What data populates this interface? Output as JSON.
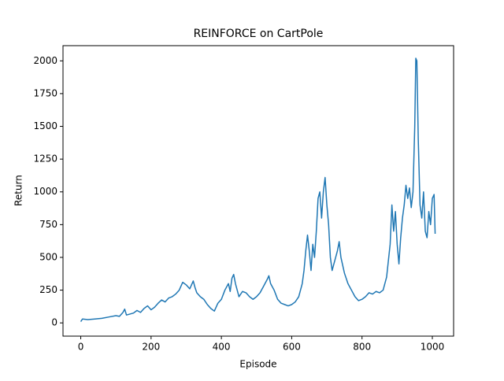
{
  "chart_data": {
    "type": "line",
    "title": "REINFORCE on CartPole",
    "x_label": "Episode",
    "y_label": "Return",
    "series": [
      {
        "name": "Return",
        "color": "#1f77b4",
        "x": [
          0,
          5,
          20,
          40,
          60,
          80,
          100,
          110,
          120,
          125,
          130,
          150,
          160,
          170,
          180,
          190,
          200,
          210,
          220,
          230,
          240,
          250,
          260,
          270,
          280,
          290,
          300,
          310,
          320,
          325,
          330,
          340,
          350,
          360,
          370,
          380,
          390,
          400,
          410,
          420,
          425,
          430,
          435,
          440,
          445,
          450,
          460,
          470,
          480,
          490,
          500,
          510,
          520,
          530,
          535,
          540,
          550,
          560,
          570,
          580,
          590,
          600,
          610,
          620,
          630,
          635,
          640,
          645,
          650,
          655,
          660,
          665,
          670,
          675,
          680,
          685,
          690,
          695,
          700,
          705,
          710,
          715,
          720,
          730,
          735,
          740,
          750,
          760,
          770,
          780,
          790,
          800,
          810,
          820,
          830,
          840,
          850,
          860,
          870,
          880,
          885,
          890,
          895,
          900,
          905,
          910,
          915,
          920,
          925,
          930,
          935,
          940,
          945,
          950,
          953,
          956,
          960,
          965,
          970,
          975,
          980,
          985,
          990,
          995,
          1000,
          1005,
          1008
        ],
        "values": [
          10,
          30,
          25,
          30,
          35,
          45,
          55,
          50,
          80,
          105,
          60,
          75,
          95,
          80,
          110,
          130,
          100,
          120,
          150,
          175,
          160,
          190,
          200,
          220,
          250,
          310,
          290,
          260,
          320,
          270,
          230,
          200,
          180,
          140,
          110,
          90,
          150,
          180,
          250,
          300,
          240,
          340,
          370,
          300,
          250,
          200,
          240,
          230,
          200,
          180,
          200,
          230,
          280,
          330,
          360,
          300,
          250,
          180,
          150,
          140,
          130,
          140,
          160,
          200,
          300,
          400,
          550,
          670,
          550,
          400,
          600,
          500,
          700,
          950,
          1000,
          800,
          1000,
          1110,
          900,
          750,
          500,
          400,
          450,
          550,
          620,
          500,
          380,
          300,
          250,
          200,
          170,
          180,
          200,
          230,
          220,
          240,
          230,
          250,
          350,
          600,
          900,
          700,
          850,
          600,
          450,
          650,
          800,
          900,
          1050,
          950,
          1030,
          880,
          1000,
          1500,
          2020,
          2000,
          1400,
          900,
          800,
          1000,
          700,
          650,
          850,
          750,
          950,
          980,
          680
        ]
      }
    ],
    "xlim": [
      -50.5,
      1060.5
    ],
    "ylim": [
      -101,
      2116
    ],
    "xticks": [
      0,
      200,
      400,
      600,
      800,
      1000
    ],
    "yticks": [
      0,
      250,
      500,
      750,
      1000,
      1250,
      1500,
      1750,
      2000
    ]
  }
}
